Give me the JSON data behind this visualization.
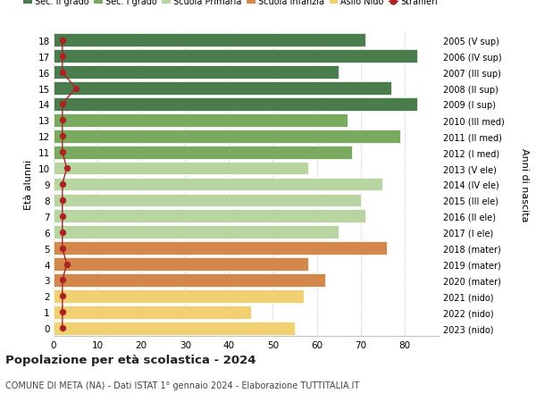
{
  "ages": [
    18,
    17,
    16,
    15,
    14,
    13,
    12,
    11,
    10,
    9,
    8,
    7,
    6,
    5,
    4,
    3,
    2,
    1,
    0
  ],
  "years": [
    "2005 (V sup)",
    "2006 (IV sup)",
    "2007 (III sup)",
    "2008 (II sup)",
    "2009 (I sup)",
    "2010 (III med)",
    "2011 (II med)",
    "2012 (I med)",
    "2013 (V ele)",
    "2014 (IV ele)",
    "2015 (III ele)",
    "2016 (II ele)",
    "2017 (I ele)",
    "2018 (mater)",
    "2019 (mater)",
    "2020 (mater)",
    "2021 (nido)",
    "2022 (nido)",
    "2023 (nido)"
  ],
  "values": [
    71,
    83,
    65,
    77,
    83,
    67,
    79,
    68,
    58,
    75,
    70,
    71,
    65,
    76,
    58,
    62,
    57,
    45,
    55
  ],
  "stranieri": [
    2,
    2,
    2,
    5,
    2,
    2,
    2,
    2,
    3,
    2,
    2,
    2,
    2,
    2,
    3,
    2,
    2,
    2,
    2
  ],
  "bar_colors": [
    "#4a7c4e",
    "#4a7c4e",
    "#4a7c4e",
    "#4a7c4e",
    "#4a7c4e",
    "#7aaa5f",
    "#7aaa5f",
    "#7aaa5f",
    "#b8d4a0",
    "#b8d4a0",
    "#b8d4a0",
    "#b8d4a0",
    "#b8d4a0",
    "#d4874a",
    "#d4874a",
    "#d4874a",
    "#f0d070",
    "#f0d070",
    "#f0d070"
  ],
  "legend_labels": [
    "Sec. II grado",
    "Sec. I grado",
    "Scuola Primaria",
    "Scuola Infanzia",
    "Asilo Nido",
    "Stranieri"
  ],
  "legend_colors": [
    "#4a7c4e",
    "#7aaa5f",
    "#b8d4a0",
    "#d4874a",
    "#f0d070",
    "#aa2222"
  ],
  "ylabel_left": "Età alunni",
  "ylabel_right": "Anni di nascita",
  "title": "Popolazione per età scolastica - 2024",
  "subtitle": "COMUNE DI META (NA) - Dati ISTAT 1° gennaio 2024 - Elaborazione TUTTITALIA.IT",
  "xlim": [
    0,
    88
  ],
  "xticks": [
    0,
    10,
    20,
    30,
    40,
    50,
    60,
    70,
    80
  ],
  "background_color": "#ffffff",
  "grid_color": "#cccccc",
  "stranieri_color": "#aa2222"
}
